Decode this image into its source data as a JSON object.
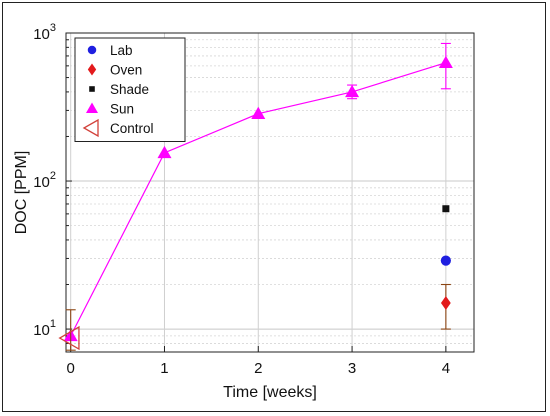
{
  "chart_data": {
    "type": "scatter",
    "xlabel": "Time [weeks]",
    "ylabel": "DOC [PPM]",
    "yscale": "log",
    "xlim": [
      -0.05,
      4.3
    ],
    "ylim": [
      7,
      1000
    ],
    "grid": true,
    "legend_position": "top-left",
    "x_ticks": [
      {
        "value": 0,
        "label": "0"
      },
      {
        "value": 1,
        "label": "1"
      },
      {
        "value": 2,
        "label": "2"
      },
      {
        "value": 3,
        "label": "3"
      },
      {
        "value": 4,
        "label": "4"
      }
    ],
    "y_ticks": [
      {
        "value": 10,
        "base": "10",
        "exp": "1"
      },
      {
        "value": 100,
        "base": "10",
        "exp": "2"
      },
      {
        "value": 1000,
        "base": "10",
        "exp": "3"
      }
    ],
    "series": [
      {
        "name": "Lab",
        "marker": "circle",
        "color": "#1f1fe0",
        "line": false,
        "points": [
          {
            "x": 4,
            "y": 29
          }
        ]
      },
      {
        "name": "Oven",
        "marker": "diamond",
        "color": "#e31a1c",
        "line": false,
        "points": [
          {
            "x": 4,
            "y": 15,
            "err_low": 10,
            "err_high": 20,
            "err_color": "#8b4513"
          }
        ]
      },
      {
        "name": "Shade",
        "marker": "square",
        "color": "#111111",
        "line": false,
        "points": [
          {
            "x": 4,
            "y": 65
          }
        ]
      },
      {
        "name": "Sun",
        "marker": "triangle-up",
        "color": "#ff00ff",
        "line": true,
        "points": [
          {
            "x": 0,
            "y": 9
          },
          {
            "x": 1,
            "y": 155
          },
          {
            "x": 2,
            "y": 285
          },
          {
            "x": 3,
            "y": 400,
            "err_low": 360,
            "err_high": 445
          },
          {
            "x": 4,
            "y": 630,
            "err_low": 420,
            "err_high": 850
          }
        ]
      },
      {
        "name": "Control",
        "marker": "triangle-left",
        "color": "#d2413a",
        "line": false,
        "points": [
          {
            "x": 0,
            "y": 8.7,
            "err_low": 7.2,
            "err_high": 13.5,
            "err_color": "#8b4513"
          }
        ]
      }
    ]
  }
}
